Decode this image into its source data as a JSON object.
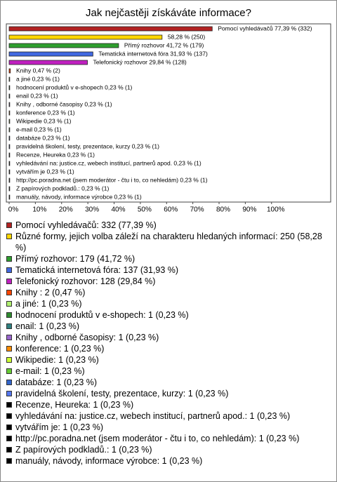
{
  "chart_data": {
    "type": "hbar",
    "title": "Jak nejčastěji získáváte informace?",
    "values": [
      77.39,
      58.28,
      41.72,
      31.93,
      29.84,
      0.47,
      0.23,
      0.23,
      0.23,
      0.23,
      0.23,
      0.23,
      0.23,
      0.23,
      0.23,
      0.23,
      0.23,
      0.23,
      0.23,
      0.23,
      0.23
    ],
    "value_labels": [
      "Pomocí vyhledávačů 77,39 % (332)",
      "58,28 % (250)",
      "Přímý rozhovor 41,72 % (179)",
      "Tematická internetová fóra 31,93 % (137)",
      "Telefonický rozhovor 29,84 % (128)",
      "Knihy  0,47 % (2)",
      "a jiné 0,23 % (1)",
      "hodnocení produktů v e-shopech 0,23 % (1)",
      "enail 0,23 % (1)",
      "Knihy , odborné časopisy 0,23 % (1)",
      "konference 0,23 % (1)",
      "Wikipedie 0,23 % (1)",
      "e-mail 0,23 % (1)",
      "databáze 0,23 % (1)",
      "pravidelná školení, testy, prezentace, kurzy 0,23 % (1)",
      "Recenze, Heureka 0,23 % (1)",
      "vyhledávání na: justice.cz, webech institucí, partnerů apod. 0,23 % (1)",
      "vytvářím je 0,23 % (1)",
      "http://pc.poradna.net (jsem moderátor - čtu i to, co nehledám) 0,23 % (1)",
      "Z papírových podkladů.: 0,23 % (1)",
      "manuály, návody, informace výrobce 0,23 % (1)"
    ],
    "legend_labels": [
      "Pomocí vyhledávačů: 332 (77,39 %)",
      "Různé formy, jejich volba záleží na charakteru hledaných informací: 250 (58,28 %)",
      "Přímý rozhovor: 179 (41,72 %)",
      "Tematická internetová fóra: 137 (31,93 %)",
      "Telefonický rozhovor: 128 (29,84 %)",
      "Knihy : 2 (0,47 %)",
      "a jiné: 1 (0,23 %)",
      "hodnocení produktů v e-shopech: 1 (0,23 %)",
      "enail: 1 (0,23 %)",
      "Knihy , odborné časopisy: 1 (0,23 %)",
      "konference: 1 (0,23 %)",
      "Wikipedie: 1 (0,23 %)",
      "e-mail: 1 (0,23 %)",
      "databáze: 1 (0,23 %)",
      "pravidelná školení, testy, prezentace, kurzy: 1 (0,23 %)",
      "Recenze, Heureka: 1 (0,23 %)",
      "vyhledávání na: justice.cz, webech institucí, partnerů apod.: 1 (0,23 %)",
      "vytvářím je: 1 (0,23 %)",
      "http://pc.poradna.net (jsem moderátor - čtu i to, co nehledám): 1 (0,23 %)",
      "Z papírových podkladů.: 1 (0,23 %)",
      "manuály, návody, informace výrobce: 1 (0,23 %)"
    ],
    "colors": [
      "#b22222",
      "#ffd700",
      "#2e9e2e",
      "#4169e1",
      "#c020c0",
      "#ff4500",
      "#b0f070",
      "#2e8b2e",
      "#2f7f7f",
      "#9966cc",
      "#ff8c00",
      "#ccff33",
      "#66cc33",
      "#3366cc",
      "#5577ee",
      "#000000",
      "#000000",
      "#000000",
      "#000000",
      "#000000",
      "#000000"
    ],
    "xlim": [
      0,
      122
    ],
    "xticks": [
      {
        "value": 0,
        "label": "0%"
      },
      {
        "value": 10,
        "label": "10%"
      },
      {
        "value": 20,
        "label": "20%"
      },
      {
        "value": 30,
        "label": "30%"
      },
      {
        "value": 40,
        "label": "40%"
      },
      {
        "value": 50,
        "label": "50%"
      },
      {
        "value": 60,
        "label": "60%"
      },
      {
        "value": 70,
        "label": "70%"
      },
      {
        "value": 80,
        "label": "80%"
      },
      {
        "value": 90,
        "label": "90%"
      },
      {
        "value": 100,
        "label": "100%"
      }
    ]
  }
}
